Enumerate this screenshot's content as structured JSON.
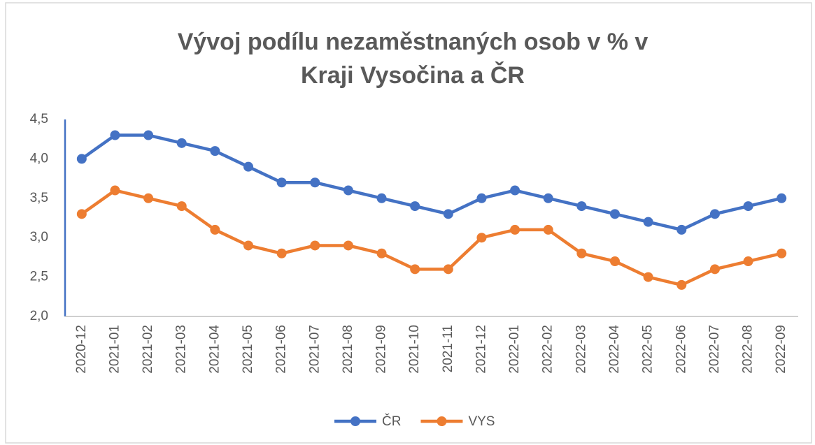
{
  "chart_data": {
    "type": "line",
    "title": [
      "Vývoj podílu nezaměstnaných osob v % v",
      "Kraji Vysočina a ČR"
    ],
    "categories": [
      "2020-12",
      "2021-01",
      "2021-02",
      "2021-03",
      "2021-04",
      "2021-05",
      "2021-06",
      "2021-07",
      "2021-08",
      "2021-09",
      "2021-10",
      "2021-11",
      "2021-12",
      "2022-01",
      "2022-02",
      "2022-03",
      "2022-04",
      "2022-05",
      "2022-06",
      "2022-07",
      "2022-08",
      "2022-09"
    ],
    "series": [
      {
        "name": "ČR",
        "color": "#4472c4",
        "values": [
          4.0,
          4.3,
          4.3,
          4.2,
          4.1,
          3.9,
          3.7,
          3.7,
          3.6,
          3.5,
          3.4,
          3.3,
          3.5,
          3.6,
          3.5,
          3.4,
          3.3,
          3.2,
          3.1,
          3.3,
          3.4,
          3.5
        ]
      },
      {
        "name": "VYS",
        "color": "#ed7d31",
        "values": [
          3.3,
          3.6,
          3.5,
          3.4,
          3.1,
          2.9,
          2.8,
          2.9,
          2.9,
          2.8,
          2.6,
          2.6,
          3.0,
          3.1,
          3.1,
          2.8,
          2.7,
          2.5,
          2.4,
          2.6,
          2.7,
          2.8
        ]
      }
    ],
    "ylim": [
      2,
      4.5
    ],
    "yticks": [
      {
        "value": 2,
        "label": "2,0"
      },
      {
        "value": 2.5,
        "label": "2,5"
      },
      {
        "value": 3,
        "label": "3,0"
      },
      {
        "value": 3.5,
        "label": "3,5"
      },
      {
        "value": 4,
        "label": "4,0"
      },
      {
        "value": 4.5,
        "label": "4,5"
      }
    ],
    "grid": false,
    "legend": "bottom"
  }
}
